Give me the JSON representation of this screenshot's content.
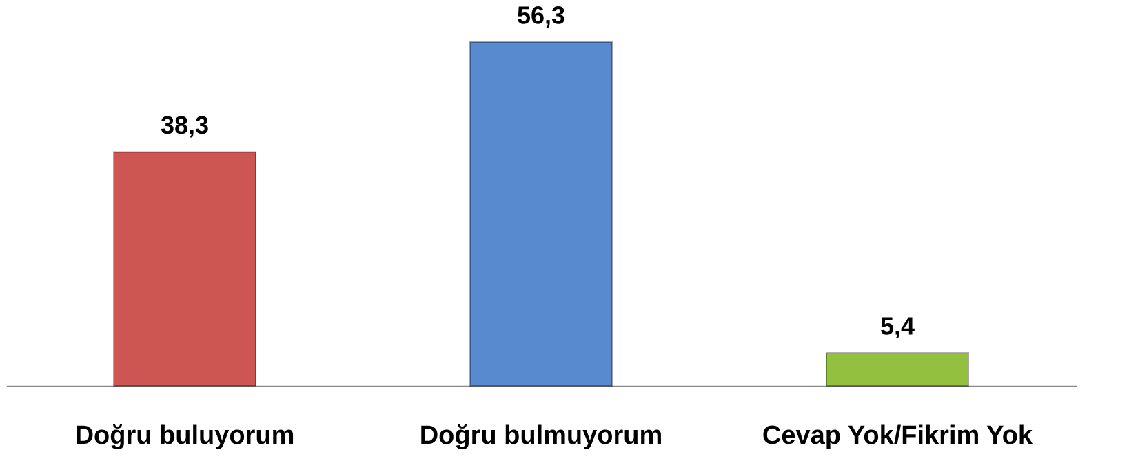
{
  "chart_data": {
    "type": "bar",
    "categories": [
      "Doğru buluyorum",
      "Doğru bulmuyorum",
      "Cevap Yok/Fikrim Yok"
    ],
    "values": [
      38.3,
      56.3,
      5.4
    ],
    "value_labels": [
      "38,3",
      "56,3",
      "5,4"
    ],
    "colors": [
      "#cd5652",
      "#588ad0",
      "#93c03e"
    ]
  }
}
